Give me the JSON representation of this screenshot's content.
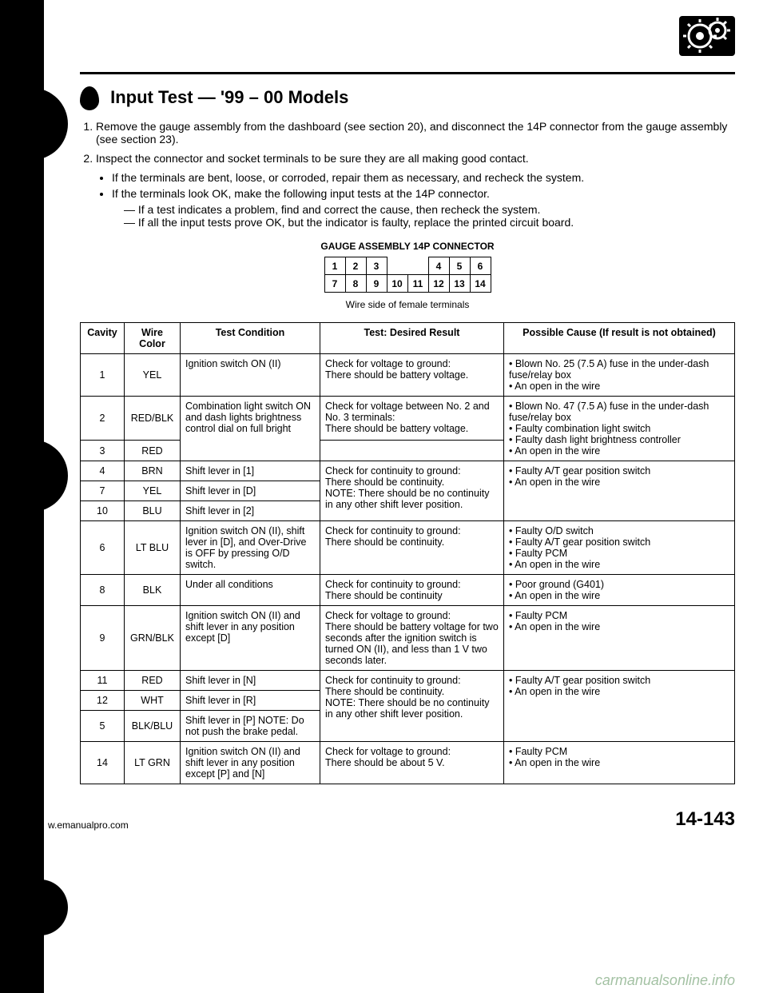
{
  "header": {
    "title": "Input Test — '99 – 00 Models"
  },
  "steps": [
    "Remove the gauge assembly from the dashboard (see section 20), and disconnect the 14P connector from the gauge assembly (see section 23).",
    "Inspect the connector and socket terminals to be sure they are all making good contact."
  ],
  "bullets": [
    "If the terminals are bent, loose, or corroded, repair them as necessary, and recheck the system.",
    "If the terminals look OK, make the following input tests at the 14P connector."
  ],
  "dashes": [
    "If a test indicates a problem, find and correct the cause, then recheck the system.",
    "If all the input tests prove OK, but the indicator is faulty, replace the printed circuit board."
  ],
  "connector": {
    "label": "GAUGE ASSEMBLY 14P CONNECTOR",
    "row1": [
      "1",
      "2",
      "3",
      "",
      "4",
      "5",
      "6"
    ],
    "row2": [
      "7",
      "8",
      "9",
      "10",
      "11",
      "12",
      "13",
      "14"
    ],
    "note": "Wire side of female terminals"
  },
  "table": {
    "head": [
      "Cavity",
      "Wire Color",
      "Test Condition",
      "Test: Desired Result",
      "Possible Cause\n(If result is not obtained)"
    ],
    "rows": [
      {
        "cavity": "1",
        "color": "YEL",
        "cond": "Ignition switch ON (II)",
        "result": "Check for voltage to ground:\nThere should be battery voltage.",
        "cause": "• Blown No. 25 (7.5 A) fuse in the under-dash fuse/relay box\n• An open in the wire"
      },
      {
        "cavity": "2",
        "color": "RED/BLK",
        "cond": "Combination light switch ON and dash lights brightness control dial on full bright",
        "result": "Check for voltage between No. 2 and No. 3 terminals:\nThere should be battery voltage.",
        "cause": "• Blown No. 47 (7.5 A) fuse in the under-dash fuse/relay box\n• Faulty combination light switch\n• Faulty dash light brightness controller\n• An open in the wire",
        "span_cond": 2,
        "span_cause": 2
      },
      {
        "cavity": "3",
        "color": "RED"
      },
      {
        "cavity": "4",
        "color": "BRN",
        "cond": "Shift lever in [1]",
        "result": "Check for continuity to ground:\nThere should be continuity.\nNOTE: There should be no continuity in any other shift lever position.",
        "cause": "• Faulty A/T gear position switch\n• An open in the wire",
        "span_result": 3,
        "span_cause": 3
      },
      {
        "cavity": "7",
        "color": "YEL",
        "cond": "Shift lever in [D]"
      },
      {
        "cavity": "10",
        "color": "BLU",
        "cond": "Shift lever in [2]"
      },
      {
        "cavity": "6",
        "color": "LT BLU",
        "cond": "Ignition switch ON (II), shift lever in [D], and Over-Drive is OFF by pressing O/D switch.",
        "result": "Check for continuity to ground:\nThere should be continuity.",
        "cause": "• Faulty O/D switch\n• Faulty A/T gear position switch\n• Faulty PCM\n• An open in the wire"
      },
      {
        "cavity": "8",
        "color": "BLK",
        "cond": "Under all conditions",
        "result": "Check for continuity to ground:\nThere should be continuity",
        "cause": "• Poor ground (G401)\n• An open in the wire"
      },
      {
        "cavity": "9",
        "color": "GRN/BLK",
        "cond": "Ignition switch ON (II) and shift lever in any position except [D]",
        "result": "Check for voltage to ground:\nThere should be battery voltage for two seconds after the ignition switch is turned ON (II), and less than 1 V two seconds later.",
        "cause": "• Faulty PCM\n• An open in the wire"
      },
      {
        "cavity": "11",
        "color": "RED",
        "cond": "Shift lever in [N]",
        "result": "Check for continuity to ground:\nThere should be continuity.\nNOTE: There should be no continuity in any other shift lever position.",
        "cause": "• Faulty A/T gear position switch\n• An open in the wire",
        "span_result": 3,
        "span_cause": 3
      },
      {
        "cavity": "12",
        "color": "WHT",
        "cond": "Shift lever in [R]"
      },
      {
        "cavity": "5",
        "color": "BLK/BLU",
        "cond": "Shift lever in [P]\nNOTE: Do not push the brake pedal."
      },
      {
        "cavity": "14",
        "color": "LT GRN",
        "cond": "Ignition switch ON (II) and shift lever in any position except [P] and [N]",
        "result": "Check for voltage to ground:\nThere should be about 5 V.",
        "cause": "• Faulty PCM\n• An open in the wire"
      }
    ]
  },
  "footer": {
    "left": "w.emanualpro.com",
    "page": "14-143",
    "watermark": "carmanualsonline.info"
  },
  "colors": {
    "text": "#000000",
    "bg": "#ffffff",
    "watermark": "#7da87d"
  }
}
